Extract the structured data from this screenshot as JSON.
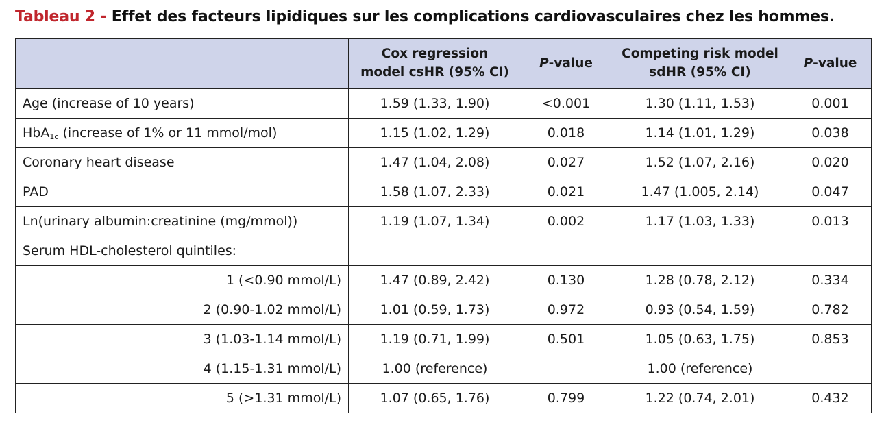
{
  "title": {
    "lead": "Tableau 2 - ",
    "rest": "Effet des facteurs lipidiques sur les complications cardiovasculaires chez les hommes."
  },
  "header": {
    "label": "",
    "cox_line1": "Cox regression",
    "cox_line2": "model csHR (95% CI)",
    "p_italic": "P",
    "p_rest": "-value",
    "comp_line1": "Competing risk model",
    "comp_line2": "sdHR (95% CI)"
  },
  "hba1c": {
    "prefix": "HbA",
    "subscript": "1c",
    "suffix": " (increase of 1% or 11 mmol/mol)"
  },
  "rows": [
    {
      "label": "Age (increase of 10 years)",
      "cox": "1.59 (1.33, 1.90)",
      "p1": "<0.001",
      "comp": "1.30 (1.11, 1.53)",
      "p2": "0.001"
    },
    {
      "label": "",
      "cox": "1.15 (1.02, 1.29)",
      "p1": "0.018",
      "comp": "1.14 (1.01, 1.29)",
      "p2": "0.038"
    },
    {
      "label": "Coronary heart disease",
      "cox": "1.47 (1.04, 2.08)",
      "p1": "0.027",
      "comp": "1.52 (1.07, 2.16)",
      "p2": "0.020"
    },
    {
      "label": "PAD",
      "cox": "1.58 (1.07, 2.33)",
      "p1": "0.021",
      "comp": "1.47 (1.005, 2.14)",
      "p2": "0.047"
    },
    {
      "label": "Ln(urinary albumin:creatinine (mg/mmol))",
      "cox": "1.19 (1.07, 1.34)",
      "p1": "0.002",
      "comp": "1.17 (1.03, 1.33)",
      "p2": "0.013"
    },
    {
      "label": "Serum HDL-cholesterol quintiles:",
      "cox": "",
      "p1": "",
      "comp": "",
      "p2": ""
    },
    {
      "label": "1 (<0.90 mmol/L)",
      "cox": "1.47 (0.89, 2.42)",
      "p1": "0.130",
      "comp": "1.28 (0.78, 2.12)",
      "p2": "0.334"
    },
    {
      "label": "2 (0.90-1.02 mmol/L)",
      "cox": "1.01 (0.59, 1.73)",
      "p1": "0.972",
      "comp": "0.93 (0.54, 1.59)",
      "p2": "0.782"
    },
    {
      "label": "3 (1.03-1.14 mmol/L)",
      "cox": "1.19 (0.71, 1.99)",
      "p1": "0.501",
      "comp": "1.05 (0.63, 1.75)",
      "p2": "0.853"
    },
    {
      "label": "4 (1.15-1.31 mmol/L)",
      "cox": "1.00 (reference)",
      "p1": "",
      "comp": "1.00 (reference)",
      "p2": ""
    },
    {
      "label": "5 (>1.31 mmol/L)",
      "cox": "1.07 (0.65, 1.76)",
      "p1": "0.799",
      "comp": "1.22 (0.74, 2.01)",
      "p2": "0.432"
    }
  ]
}
